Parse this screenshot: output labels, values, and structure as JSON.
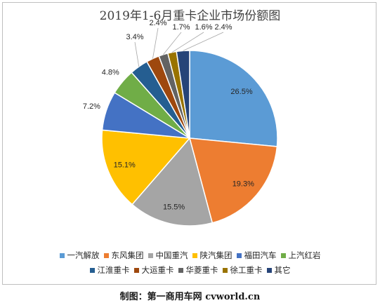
{
  "title": "2019年1-6月重卡企业市场份额图",
  "footer": "制图：第一商用车网 cvworld.cn",
  "chart_data": {
    "type": "pie",
    "title": "2019年1-6月重卡企业市场份额图",
    "labels_format": "percent",
    "legend_position": "bottom",
    "slices": [
      {
        "name": "一汽解放",
        "value": 26.5,
        "label": "26.5%",
        "color": "#5b9bd5"
      },
      {
        "name": "东风集团",
        "value": 19.3,
        "label": "19.3%",
        "color": "#ed7d31"
      },
      {
        "name": "中国重汽",
        "value": 15.5,
        "label": "15.5%",
        "color": "#a5a5a5"
      },
      {
        "name": "陕汽集团",
        "value": 15.1,
        "label": "15.1%",
        "color": "#ffc000"
      },
      {
        "name": "福田汽车",
        "value": 7.2,
        "label": "7.2%",
        "color": "#4472c4"
      },
      {
        "name": "上汽红岩",
        "value": 4.8,
        "label": "4.8%",
        "color": "#70ad47"
      },
      {
        "name": "江淮重卡",
        "value": 3.4,
        "label": "3.4%",
        "color": "#255e91"
      },
      {
        "name": "大运重卡",
        "value": 2.4,
        "label": "2.4%",
        "color": "#9e480e"
      },
      {
        "name": "华菱重卡",
        "value": 1.7,
        "label": "1.7%",
        "color": "#636363"
      },
      {
        "name": "徐工重卡",
        "value": 1.6,
        "label": "1.6%",
        "color": "#997300"
      },
      {
        "name": "其它",
        "value": 2.4,
        "label": "2.4%",
        "color": "#264478"
      }
    ]
  }
}
